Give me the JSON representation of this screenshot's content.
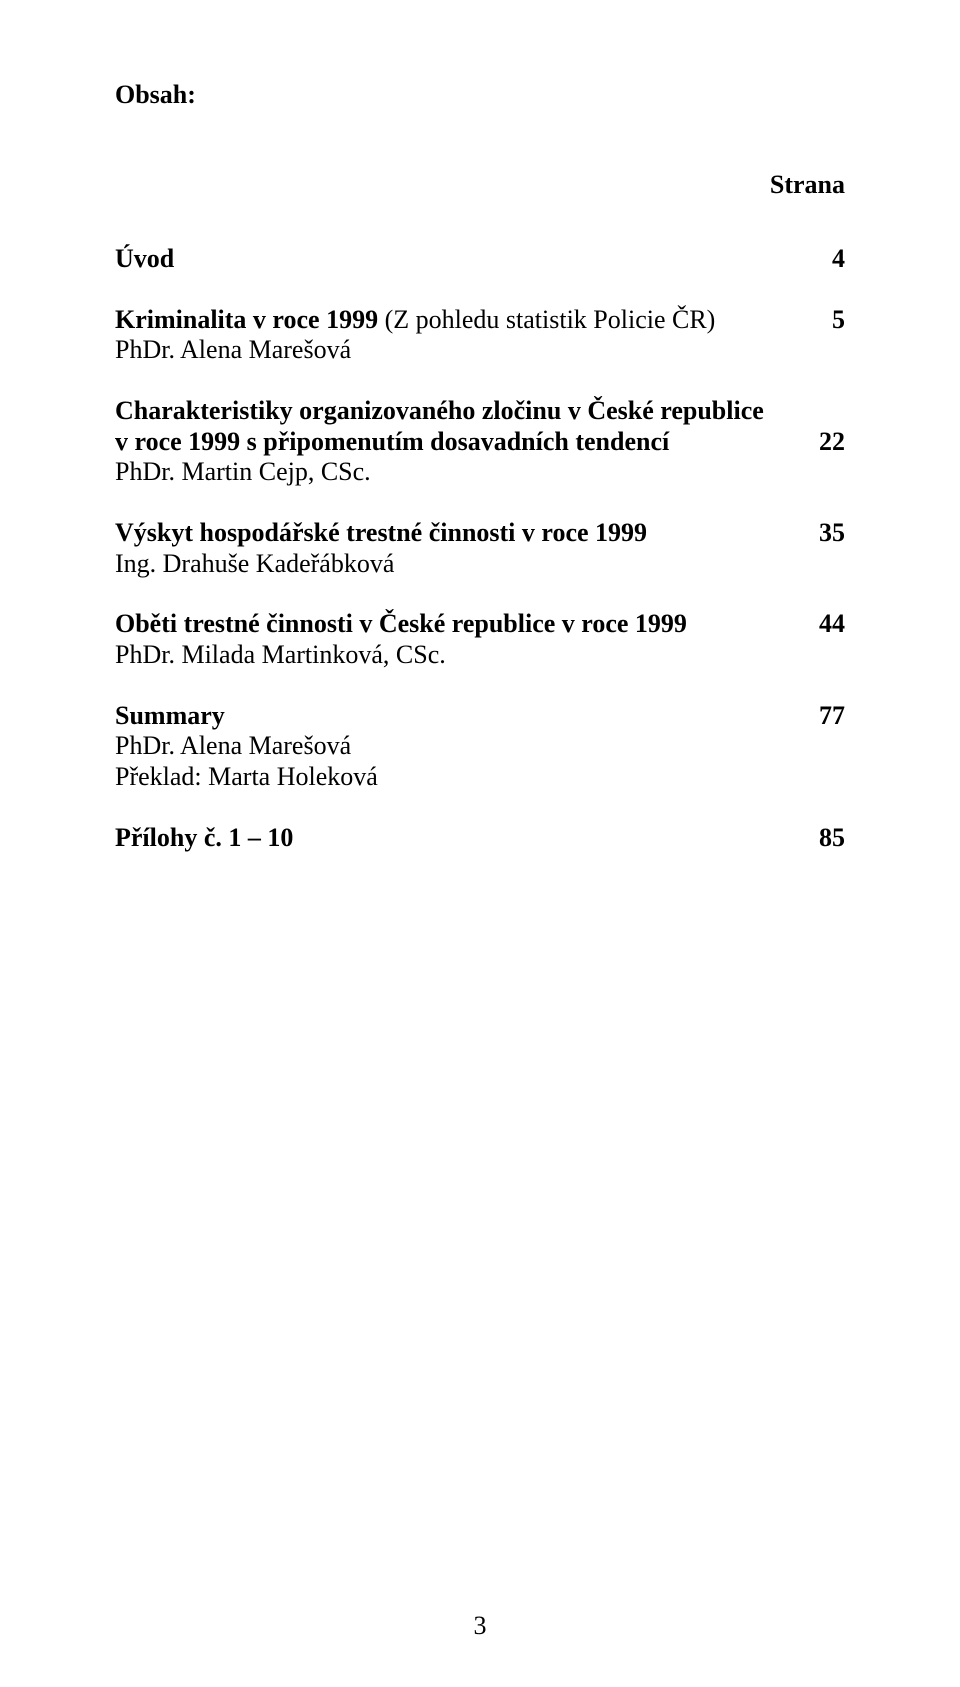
{
  "heading": "Obsah:",
  "column_header": "Strana",
  "entries": [
    {
      "title": "Úvod",
      "authors": [],
      "page": "4"
    },
    {
      "title": "Kriminalita v roce 1999 ",
      "title_suffix": "(Z pohledu statistik Policie ČR)",
      "authors": [
        "PhDr. Alena Marešová"
      ],
      "page": "5"
    },
    {
      "title": "Charakteristiky organizovaného zločinu v České republice",
      "title_line2": "v roce 1999 s připomenutím dosavadních tendencí",
      "authors": [
        "PhDr. Martin Cejp, CSc."
      ],
      "page": "22"
    },
    {
      "title": "Výskyt hospodářské trestné činnosti v roce 1999",
      "authors": [
        "Ing. Drahuše Kadeřábková"
      ],
      "page": "35"
    },
    {
      "title": "Oběti trestné činnosti v České republice v roce 1999",
      "authors": [
        "PhDr. Milada Martinková, CSc."
      ],
      "page": "44"
    },
    {
      "title": "Summary",
      "authors": [
        "PhDr. Alena Marešová",
        "Překlad: Marta Holeková"
      ],
      "page": "77"
    },
    {
      "title": "Přílohy č. 1 – 10",
      "authors": [],
      "page": "85"
    }
  ],
  "footer_page_number": "3"
}
